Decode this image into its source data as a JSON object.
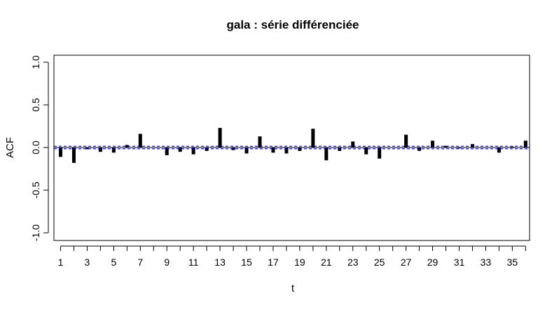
{
  "chart_data": {
    "type": "bar",
    "title": "gala : série différenciée",
    "xlabel": "t",
    "ylabel": "ACF",
    "ylim": [
      -1.0,
      1.0
    ],
    "xlim": [
      0.5,
      36.3
    ],
    "x": [
      1,
      2,
      3,
      4,
      5,
      6,
      7,
      8,
      9,
      10,
      11,
      12,
      13,
      14,
      15,
      16,
      17,
      18,
      19,
      20,
      21,
      22,
      23,
      24,
      25,
      26,
      27,
      28,
      29,
      30,
      31,
      32,
      33,
      34,
      35,
      36
    ],
    "values": [
      -0.11,
      -0.18,
      -0.02,
      -0.05,
      -0.06,
      0.03,
      0.16,
      0.0,
      -0.09,
      -0.05,
      -0.08,
      -0.04,
      0.23,
      -0.03,
      -0.07,
      0.13,
      -0.06,
      -0.07,
      -0.04,
      0.22,
      -0.15,
      -0.04,
      0.07,
      -0.08,
      -0.13,
      0.0,
      0.15,
      -0.04,
      0.08,
      0.02,
      -0.01,
      0.04,
      0.0,
      -0.06,
      0.01,
      0.08
    ],
    "y_ticks": [
      -1.0,
      -0.5,
      0.0,
      0.5,
      1.0
    ],
    "y_tick_labels": [
      "-1.0",
      "-0.5",
      "0.0",
      "0.5",
      "1.0"
    ],
    "x_ticks": [
      1,
      3,
      5,
      7,
      9,
      11,
      13,
      15,
      17,
      19,
      21,
      23,
      25,
      27,
      29,
      31,
      33,
      35
    ],
    "x_tick_labels": [
      "1",
      "3",
      "5",
      "7",
      "9",
      "11",
      "13",
      "15",
      "17",
      "19",
      "21",
      "23",
      "25",
      "27",
      "29",
      "31",
      "33",
      "35"
    ],
    "x_minor_ticks": [
      2,
      4,
      6,
      8,
      10,
      12,
      14,
      16,
      18,
      20,
      22,
      24,
      26,
      28,
      30,
      32,
      34,
      36
    ],
    "confidence_band": 0.015,
    "grid": false,
    "colors": {
      "bar": "#000000",
      "band": "#0000ff",
      "zero_line": "#000000"
    }
  }
}
